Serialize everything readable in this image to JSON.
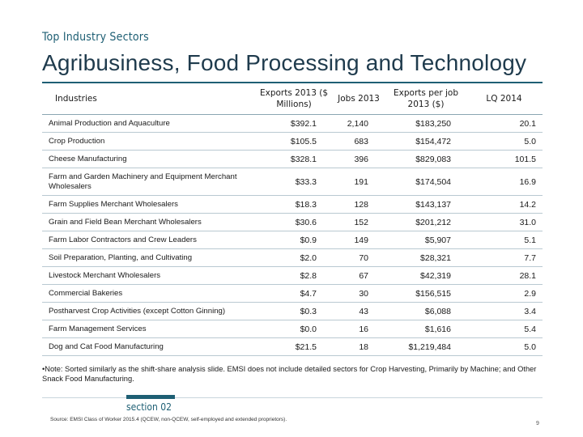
{
  "header": {
    "section_label": "Top Industry Sectors",
    "title": "Agribusiness, Food Processing and Technology"
  },
  "table": {
    "columns": [
      "Industries",
      "Exports 2013 ($ Millions)",
      "Jobs 2013",
      "Exports per job 2013 ($)",
      "LQ 2014"
    ],
    "rows": [
      {
        "industry": "Animal Production and Aquaculture",
        "exports": "$392.1",
        "jobs": "2,140",
        "per_job": "$183,250",
        "lq": "20.1"
      },
      {
        "industry": "Crop Production",
        "exports": "$105.5",
        "jobs": "683",
        "per_job": "$154,472",
        "lq": "5.0"
      },
      {
        "industry": "Cheese Manufacturing",
        "exports": "$328.1",
        "jobs": "396",
        "per_job": "$829,083",
        "lq": "101.5"
      },
      {
        "industry": "Farm and Garden Machinery and Equipment Merchant Wholesalers",
        "exports": "$33.3",
        "jobs": "191",
        "per_job": "$174,504",
        "lq": "16.9"
      },
      {
        "industry": "Farm Supplies Merchant Wholesalers",
        "exports": "$18.3",
        "jobs": "128",
        "per_job": "$143,137",
        "lq": "14.2"
      },
      {
        "industry": "Grain and Field Bean Merchant Wholesalers",
        "exports": "$30.6",
        "jobs": "152",
        "per_job": "$201,212",
        "lq": "31.0"
      },
      {
        "industry": "Farm Labor Contractors and Crew Leaders",
        "exports": "$0.9",
        "jobs": "149",
        "per_job": "$5,907",
        "lq": "5.1"
      },
      {
        "industry": "Soil Preparation, Planting, and Cultivating",
        "exports": "$2.0",
        "jobs": "70",
        "per_job": "$28,321",
        "lq": "7.7"
      },
      {
        "industry": "Livestock Merchant Wholesalers",
        "exports": "$2.8",
        "jobs": "67",
        "per_job": "$42,319",
        "lq": "28.1"
      },
      {
        "industry": "Commercial Bakeries",
        "exports": "$4.7",
        "jobs": "30",
        "per_job": "$156,515",
        "lq": "2.9"
      },
      {
        "industry": "Postharvest Crop Activities (except Cotton Ginning)",
        "exports": "$0.3",
        "jobs": "43",
        "per_job": "$6,088",
        "lq": "3.4"
      },
      {
        "industry": "Farm Management Services",
        "exports": "$0.0",
        "jobs": "16",
        "per_job": "$1,616",
        "lq": "5.4"
      },
      {
        "industry": "Dog and Cat Food Manufacturing",
        "exports": "$21.5",
        "jobs": "18",
        "per_job": "$1,219,484",
        "lq": "5.0"
      }
    ]
  },
  "note": "•Note: Sorted similarly as the shift-share analysis slide. EMSI does not include detailed sectors for Crop Harvesting, Primarily by Machine; and Other Snack Food Manufacturing.",
  "footer": {
    "section": "section 02",
    "source": "Source: EMSI Class of Worker 2015.4 (QCEW, non-QCEW, self-employed and extended proprietors).",
    "page_number": "9"
  },
  "colors": {
    "accent": "#1e5f74",
    "title": "#1f3b4d",
    "row_rule": "#b9c9d1"
  }
}
